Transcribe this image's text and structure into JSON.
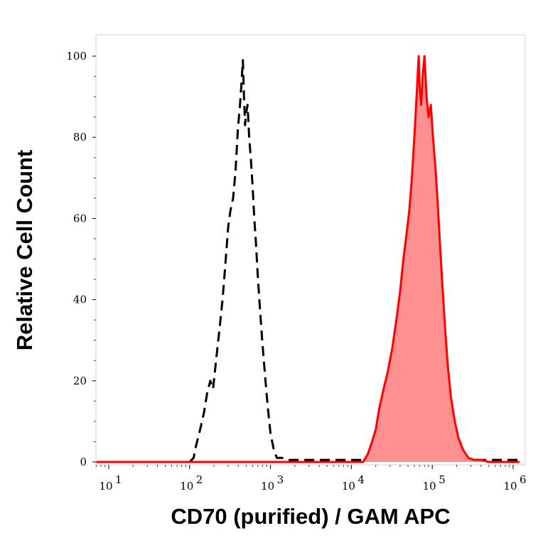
{
  "chart_data": {
    "type": "area",
    "xlabel": "CD70 (purified) / GAM APC",
    "ylabel": "Relative Cell Count",
    "xscale": "log",
    "xlim": [
      5,
      1200000
    ],
    "ylim": [
      0,
      100
    ],
    "x_ticks": [
      {
        "value": 10,
        "label": "10",
        "exp": "1"
      },
      {
        "value": 100,
        "label": "10",
        "exp": "2"
      },
      {
        "value": 1000,
        "label": "10",
        "exp": "3"
      },
      {
        "value": 10000,
        "label": "10",
        "exp": "4"
      },
      {
        "value": 100000,
        "label": "10",
        "exp": "5"
      },
      {
        "value": 1000000,
        "label": "10",
        "exp": "6"
      }
    ],
    "y_ticks": [
      0,
      20,
      40,
      60,
      80,
      100
    ],
    "grid": false,
    "series": [
      {
        "style": "dashed",
        "color": "#000000",
        "fill": "none",
        "x": [
          5,
          100,
          112,
          120,
          135,
          150,
          165,
          180,
          195,
          215,
          235,
          255,
          275,
          300,
          320,
          345,
          370,
          395,
          420,
          440,
          455,
          470,
          485,
          500,
          520,
          545,
          570,
          600,
          630,
          660,
          700,
          740,
          790,
          850,
          920,
          1000,
          1100,
          1200,
          1400,
          1700,
          2200,
          3000,
          5000,
          20000,
          1200000
        ],
        "y": [
          0,
          0,
          1,
          4,
          8,
          12,
          17,
          20,
          18,
          26,
          33,
          40,
          48,
          58,
          62,
          65,
          72,
          82,
          88,
          94,
          99,
          90,
          83,
          86,
          88,
          80,
          75,
          68,
          60,
          54,
          45,
          38,
          30,
          22,
          14,
          7,
          3,
          1,
          1,
          0.5,
          0.5,
          0.5,
          0.5,
          0.5,
          0.5
        ]
      },
      {
        "style": "solid",
        "color": "#ff0000",
        "fill": "#ff9090",
        "x": [
          5,
          10000,
          14000,
          16000,
          18000,
          20000,
          22000,
          25000,
          28000,
          32000,
          36000,
          40000,
          44000,
          48000,
          52000,
          56000,
          60000,
          64000,
          68000,
          70000,
          73000,
          76000,
          80000,
          85000,
          90000,
          96000,
          102000,
          110000,
          118000,
          126000,
          135000,
          145000,
          155000,
          170000,
          190000,
          210000,
          240000,
          280000,
          330000,
          400000,
          500000,
          1200000
        ],
        "y": [
          0,
          0,
          0,
          2,
          5,
          8,
          13,
          18,
          22,
          28,
          35,
          42,
          50,
          56,
          62,
          70,
          80,
          90,
          100,
          92,
          88,
          95,
          100,
          90,
          85,
          88,
          80,
          72,
          62,
          52,
          42,
          32,
          24,
          16,
          10,
          6,
          3,
          1,
          0.5,
          0.5,
          0,
          0
        ]
      }
    ]
  }
}
